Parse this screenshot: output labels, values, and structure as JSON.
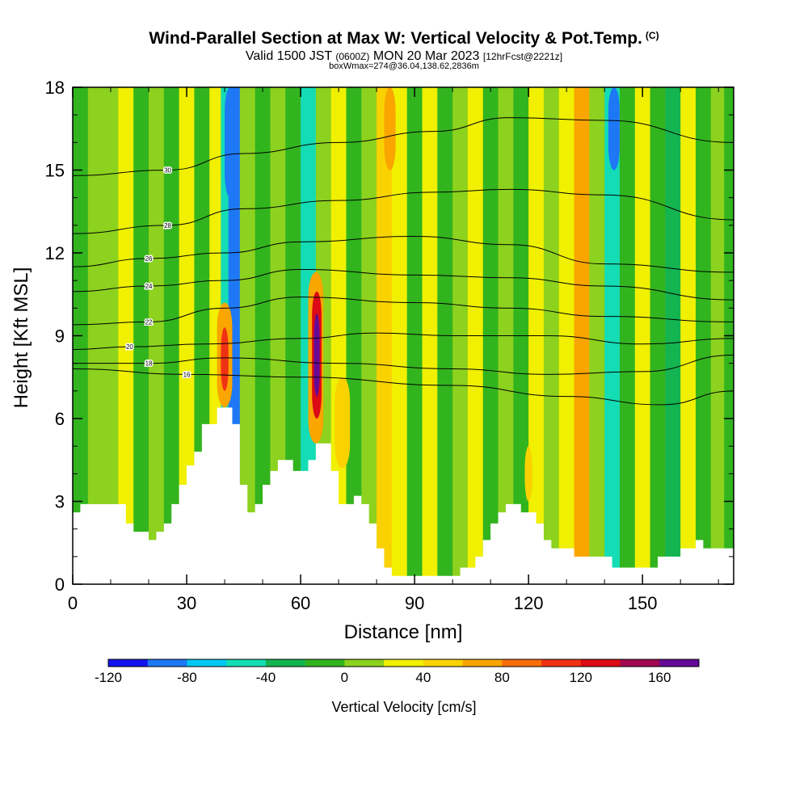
{
  "header": {
    "title": "Wind-Parallel Section at Max W: Vertical Velocity & Pot.Temp.",
    "copyright": "(C)",
    "valid_main": "Valid 1500 JST",
    "valid_z": "(0600Z)",
    "valid_date": "MON 20 Mar 2023",
    "forecast": "[12hrFcst@2221z]",
    "box": "boxWmax=274@36.04,138.62,2836m"
  },
  "chart_data": {
    "type": "heatmap",
    "xlabel": "Distance [nm]",
    "ylabel": "Height [Kft MSL]",
    "xlim": [
      0,
      174
    ],
    "ylim": [
      0,
      18
    ],
    "x_ticks": [
      0,
      30,
      60,
      90,
      120,
      150
    ],
    "y_ticks": [
      0,
      3,
      6,
      9,
      12,
      15,
      18
    ],
    "colorbar": {
      "title": "Vertical Velocity [cm/s]",
      "min": -120,
      "max": 180,
      "step": 20,
      "labels": [
        -120,
        -80,
        -40,
        0,
        40,
        80,
        120,
        160
      ],
      "colors": [
        "#1414f0",
        "#1e78f5",
        "#00c8f0",
        "#14dcb4",
        "#14b450",
        "#32b41e",
        "#8cd21e",
        "#f0f000",
        "#fad200",
        "#faa500",
        "#fa6e0a",
        "#f03214",
        "#dc0a14",
        "#a00a50",
        "#640a96"
      ]
    },
    "terrain": [
      [
        0,
        2.6
      ],
      [
        2,
        2.9
      ],
      [
        5,
        2.9
      ],
      [
        8,
        2.9
      ],
      [
        10,
        2.9
      ],
      [
        12,
        2.9
      ],
      [
        14,
        2.2
      ],
      [
        16,
        1.9
      ],
      [
        18,
        1.9
      ],
      [
        20,
        1.6
      ],
      [
        22,
        1.9
      ],
      [
        24,
        2.2
      ],
      [
        26,
        2.9
      ],
      [
        28,
        3.6
      ],
      [
        30,
        4.3
      ],
      [
        32,
        4.8
      ],
      [
        34,
        5.8
      ],
      [
        36,
        5.8
      ],
      [
        38,
        6.4
      ],
      [
        40,
        6.4
      ],
      [
        42,
        5.8
      ],
      [
        44,
        3.6
      ],
      [
        46,
        2.6
      ],
      [
        48,
        2.9
      ],
      [
        50,
        3.6
      ],
      [
        52,
        4.1
      ],
      [
        54,
        4.5
      ],
      [
        56,
        4.5
      ],
      [
        58,
        4.1
      ],
      [
        60,
        4.1
      ],
      [
        62,
        4.5
      ],
      [
        64,
        5.1
      ],
      [
        66,
        5.1
      ],
      [
        68,
        4.1
      ],
      [
        70,
        2.9
      ],
      [
        72,
        2.9
      ],
      [
        74,
        3.2
      ],
      [
        76,
        2.9
      ],
      [
        78,
        2.2
      ],
      [
        80,
        1.3
      ],
      [
        82,
        0.6
      ],
      [
        84,
        0.3
      ],
      [
        86,
        0.3
      ],
      [
        90,
        0.3
      ],
      [
        94,
        0.3
      ],
      [
        98,
        0.3
      ],
      [
        100,
        0.3
      ],
      [
        102,
        0.6
      ],
      [
        104,
        0.6
      ],
      [
        106,
        1.0
      ],
      [
        108,
        1.6
      ],
      [
        110,
        2.2
      ],
      [
        112,
        2.6
      ],
      [
        114,
        2.9
      ],
      [
        116,
        2.9
      ],
      [
        118,
        2.6
      ],
      [
        120,
        2.6
      ],
      [
        122,
        2.2
      ],
      [
        124,
        1.6
      ],
      [
        126,
        1.3
      ],
      [
        130,
        1.3
      ],
      [
        132,
        1.0
      ],
      [
        136,
        1.0
      ],
      [
        140,
        1.0
      ],
      [
        142,
        0.6
      ],
      [
        148,
        0.6
      ],
      [
        152,
        0.6
      ],
      [
        154,
        1.0
      ],
      [
        158,
        1.0
      ],
      [
        160,
        1.3
      ],
      [
        164,
        1.6
      ],
      [
        166,
        1.3
      ],
      [
        170,
        1.3
      ],
      [
        174,
        1.3
      ]
    ],
    "w_columns": [
      {
        "x": 2,
        "w": -10
      },
      {
        "x": 6,
        "w": 10
      },
      {
        "x": 10,
        "w": 0
      },
      {
        "x": 14,
        "w": 20
      },
      {
        "x": 18,
        "w": -20
      },
      {
        "x": 22,
        "w": 10
      },
      {
        "x": 26,
        "w": -10
      },
      {
        "x": 30,
        "w": 20
      },
      {
        "x": 34,
        "w": -20
      },
      {
        "x": 38,
        "w": 30
      },
      {
        "x": 40,
        "w": -60
      },
      {
        "x": 42,
        "w": -90
      },
      {
        "x": 46,
        "w": 10
      },
      {
        "x": 50,
        "w": -10
      },
      {
        "x": 54,
        "w": 15
      },
      {
        "x": 58,
        "w": -20
      },
      {
        "x": 62,
        "w": -45
      },
      {
        "x": 66,
        "w": 0
      },
      {
        "x": 70,
        "w": 20
      },
      {
        "x": 74,
        "w": -10
      },
      {
        "x": 78,
        "w": 10
      },
      {
        "x": 82,
        "w": 50
      },
      {
        "x": 86,
        "w": 30
      },
      {
        "x": 90,
        "w": -20
      },
      {
        "x": 94,
        "w": 25
      },
      {
        "x": 98,
        "w": -10
      },
      {
        "x": 102,
        "w": 10
      },
      {
        "x": 106,
        "w": 30
      },
      {
        "x": 110,
        "w": -20
      },
      {
        "x": 114,
        "w": 15
      },
      {
        "x": 118,
        "w": -10
      },
      {
        "x": 122,
        "w": 20
      },
      {
        "x": 126,
        "w": 0
      },
      {
        "x": 130,
        "w": 25
      },
      {
        "x": 134,
        "w": 60
      },
      {
        "x": 138,
        "w": 10
      },
      {
        "x": 142,
        "w": -50
      },
      {
        "x": 146,
        "w": -20
      },
      {
        "x": 150,
        "w": 30
      },
      {
        "x": 154,
        "w": -10
      },
      {
        "x": 158,
        "w": -30
      },
      {
        "x": 162,
        "w": 20
      },
      {
        "x": 166,
        "w": -10
      },
      {
        "x": 170,
        "w": 10
      },
      {
        "x": 173,
        "w": -20
      }
    ],
    "w_cells": [
      {
        "x0": 38,
        "x1": 42,
        "y0": 6.4,
        "y1": 10.2,
        "w": 70
      },
      {
        "x0": 39,
        "x1": 41,
        "y0": 7,
        "y1": 9.3,
        "w": 110
      },
      {
        "x0": 62,
        "x1": 66,
        "y0": 5.1,
        "y1": 11.3,
        "w": 70
      },
      {
        "x0": 63,
        "x1": 65.5,
        "y0": 6,
        "y1": 10.6,
        "w": 130
      },
      {
        "x0": 63.5,
        "x1": 65,
        "y0": 6.8,
        "y1": 9.8,
        "w": 175
      },
      {
        "x0": 69,
        "x1": 73,
        "y0": 4.2,
        "y1": 7.5,
        "w": 50
      },
      {
        "x0": 82,
        "x1": 85,
        "y0": 15,
        "y1": 18,
        "w": 60
      },
      {
        "x0": 132,
        "x1": 136,
        "y0": 15,
        "y1": 18,
        "w": 70
      },
      {
        "x0": 119,
        "x1": 121,
        "y0": 3,
        "y1": 5,
        "w": 40
      },
      {
        "x0": 40,
        "x1": 43,
        "y0": 14,
        "y1": 18,
        "w": -100
      },
      {
        "x0": 141,
        "x1": 144,
        "y0": 15,
        "y1": 18,
        "w": -100
      }
    ],
    "contours": [
      {
        "label": "16",
        "pts": [
          [
            0,
            7.8
          ],
          [
            30,
            7.6
          ],
          [
            60,
            7.5
          ],
          [
            100,
            7.2
          ],
          [
            130,
            6.8
          ],
          [
            155,
            6.5
          ],
          [
            174,
            7.0
          ]
        ]
      },
      {
        "label": "18",
        "pts": [
          [
            0,
            8.0
          ],
          [
            20,
            8.0
          ],
          [
            40,
            8.2
          ],
          [
            70,
            8.0
          ],
          [
            100,
            7.8
          ],
          [
            125,
            7.6
          ],
          [
            150,
            7.7
          ],
          [
            174,
            8.3
          ]
        ]
      },
      {
        "label": "20",
        "pts": [
          [
            0,
            8.5
          ],
          [
            15,
            8.6
          ],
          [
            35,
            8.7
          ],
          [
            60,
            8.9
          ],
          [
            80,
            9.1
          ],
          [
            100,
            9.0
          ],
          [
            125,
            9.0
          ],
          [
            150,
            8.7
          ],
          [
            174,
            8.9
          ]
        ]
      },
      {
        "label": "22",
        "pts": [
          [
            0,
            9.4
          ],
          [
            20,
            9.5
          ],
          [
            40,
            10.0
          ],
          [
            60,
            10.4
          ],
          [
            90,
            10.2
          ],
          [
            115,
            10.0
          ],
          [
            140,
            9.7
          ],
          [
            174,
            9.5
          ]
        ]
      },
      {
        "label": "24",
        "pts": [
          [
            0,
            10.6
          ],
          [
            20,
            10.8
          ],
          [
            40,
            11.0
          ],
          [
            60,
            11.4
          ],
          [
            90,
            11.2
          ],
          [
            115,
            11.1
          ],
          [
            140,
            10.8
          ],
          [
            174,
            10.3
          ]
        ]
      },
      {
        "label": "26",
        "pts": [
          [
            0,
            11.5
          ],
          [
            20,
            11.8
          ],
          [
            40,
            12.0
          ],
          [
            60,
            12.4
          ],
          [
            90,
            12.6
          ],
          [
            115,
            12.3
          ],
          [
            140,
            11.6
          ],
          [
            174,
            11.3
          ]
        ]
      },
      {
        "label": "28",
        "pts": [
          [
            0,
            12.7
          ],
          [
            25,
            13.0
          ],
          [
            45,
            13.6
          ],
          [
            70,
            13.9
          ],
          [
            95,
            14.2
          ],
          [
            115,
            14.3
          ],
          [
            140,
            14.1
          ],
          [
            174,
            13.2
          ]
        ]
      },
      {
        "label": "30",
        "pts": [
          [
            0,
            14.8
          ],
          [
            25,
            15.0
          ],
          [
            45,
            15.6
          ],
          [
            70,
            16.0
          ],
          [
            95,
            16.4
          ],
          [
            115,
            16.9
          ],
          [
            140,
            16.8
          ],
          [
            174,
            16.0
          ]
        ]
      }
    ]
  }
}
